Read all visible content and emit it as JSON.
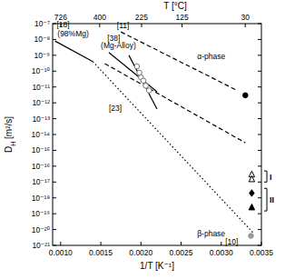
{
  "chart_data": {
    "type": "line",
    "xlabel": "1/T [K⁻¹]",
    "ylabel": "D",
    "ylabel_sub": "H",
    "ylabel_unit": " [m²/s]",
    "x2label": "T [°C]",
    "log": "y",
    "grid": false,
    "xlim": [
      0.0009,
      0.0035
    ],
    "xticks": [
      {
        "value": 0.001,
        "label": "0.0010"
      },
      0.0015,
      {
        "value": 0.002,
        "label": "0.0020"
      },
      0.0025,
      {
        "value": 0.003,
        "label": "0.0030"
      },
      0.0035
    ],
    "x2ticks": [
      {
        "value": 0.0010009,
        "label": "726"
      },
      {
        "value": 0.0014856,
        "label": "400"
      },
      {
        "value": 0.0020074,
        "label": "225"
      },
      {
        "value": 0.0025116,
        "label": "125"
      },
      {
        "value": 0.0032987,
        "label": "30"
      }
    ],
    "ylim": [
      1e-21,
      1e-07
    ],
    "yticks": [
      {
        "value": 1e-07,
        "label": "10⁻⁷"
      },
      {
        "value": 1e-08,
        "label": "10⁻⁸"
      },
      {
        "value": 1e-09,
        "label": "10⁻⁹"
      },
      {
        "value": 1e-10,
        "label": "10⁻¹⁰"
      },
      {
        "value": 1e-11,
        "label": "10⁻¹¹"
      },
      {
        "value": 1e-12,
        "label": "10⁻¹²"
      },
      {
        "value": 1e-13,
        "label": "10⁻¹³"
      },
      {
        "value": 1e-14,
        "label": "10⁻¹⁴"
      },
      {
        "value": 1e-15,
        "label": "10⁻¹⁵"
      },
      {
        "value": 1e-16,
        "label": "10⁻¹⁶"
      },
      {
        "value": 1e-17,
        "label": "10⁻¹⁷"
      },
      {
        "value": 1e-18,
        "label": "10⁻¹⁸"
      },
      {
        "value": 1e-19,
        "label": "10⁻¹⁹"
      },
      {
        "value": 1e-20,
        "label": "10⁻²⁰"
      },
      {
        "value": 1e-21,
        "label": "10⁻²¹"
      }
    ],
    "series": [
      {
        "type": "line",
        "color": "#000000",
        "line_style": "solid",
        "marker": "none",
        "x": [
          0.00093,
          0.0014
        ],
        "values": [
          8e-09,
          4e-10
        ]
      },
      {
        "type": "line",
        "color": "#000000",
        "line_style": "dotted",
        "marker": "none",
        "x": [
          0.0014,
          0.0034
        ],
        "values": [
          4e-10,
          6e-21
        ]
      },
      {
        "type": "line",
        "color": "#000000",
        "line_style": "dashed",
        "marker": "none",
        "x": [
          0.00175,
          0.0032
        ],
        "values": [
          3e-08,
          6e-12
        ]
      },
      {
        "type": "line",
        "color": "#000000",
        "line_style": "dashed",
        "marker": "none",
        "x": [
          0.00155,
          0.0033
        ],
        "values": [
          3e-10,
          3e-15
        ]
      },
      {
        "type": "line",
        "color": "#000000",
        "line_style": "solid",
        "marker": "none",
        "x": [
          0.0016,
          0.0022
        ],
        "values": [
          1.5e-09,
          5e-12
        ]
      },
      {
        "type": "line",
        "color": "#000000",
        "line_style": "solid",
        "marker": "none",
        "x": [
          0.00185,
          0.0022
        ],
        "values": [
          1e-09,
          4e-13
        ]
      },
      {
        "type": "scatter",
        "color": "#777777",
        "marker": "circle-open",
        "x": [
          0.00195,
          0.00198,
          0.002,
          0.00203,
          0.00206,
          0.0021
        ],
        "values": [
          2e-10,
          8e-11,
          4e-11,
          2.5e-11,
          1.2e-11,
          6e-12
        ]
      },
      {
        "type": "scatter",
        "color": "#000000",
        "marker": "circle",
        "x": [
          0.0033
        ],
        "values": [
          3e-12
        ]
      },
      {
        "type": "scatter",
        "color": "#000000",
        "marker": "triangle-open",
        "x": [
          0.00338,
          0.00338
        ],
        "values": [
          3e-17,
          1.5e-17
        ]
      },
      {
        "type": "scatter",
        "color": "#000000",
        "marker": "diamond",
        "x": [
          0.00338
        ],
        "values": [
          2e-18
        ]
      },
      {
        "type": "scatter",
        "color": "#000000",
        "marker": "triangle",
        "x": [
          0.00338
        ],
        "values": [
          2.5e-19
        ]
      },
      {
        "type": "scatter",
        "color": "#999999",
        "marker": "circle",
        "x": [
          0.00337
        ],
        "values": [
          4e-21
        ]
      }
    ],
    "annotations": [
      {
        "text": "[18]",
        "x": 0.00095,
        "y": 6e-08
      },
      {
        "text": "(98%Mg)",
        "x": 0.00096,
        "y": 1.5e-08
      },
      {
        "text": "[11]",
        "x": 0.0017,
        "y": 5e-08
      },
      {
        "text": "α-phase",
        "x": 0.0027,
        "y": 6e-10
      },
      {
        "text": "[38]",
        "x": 0.00158,
        "y": 8e-09
      },
      {
        "text": "(Mg-Alloy)",
        "x": 0.0015,
        "y": 3e-09
      },
      {
        "text": "[23]",
        "x": 0.0016,
        "y": 3e-13
      },
      {
        "text": "β-phase",
        "x": 0.0027,
        "y": 4e-21
      },
      {
        "text": "[10]",
        "x": 0.00305,
        "y": 1.2e-21
      }
    ],
    "brackets": [
      {
        "label": "I",
        "range": [
          1e-17,
          5e-17
        ]
      },
      {
        "label": "II",
        "range": [
          1.5e-19,
          4e-18
        ]
      }
    ]
  }
}
